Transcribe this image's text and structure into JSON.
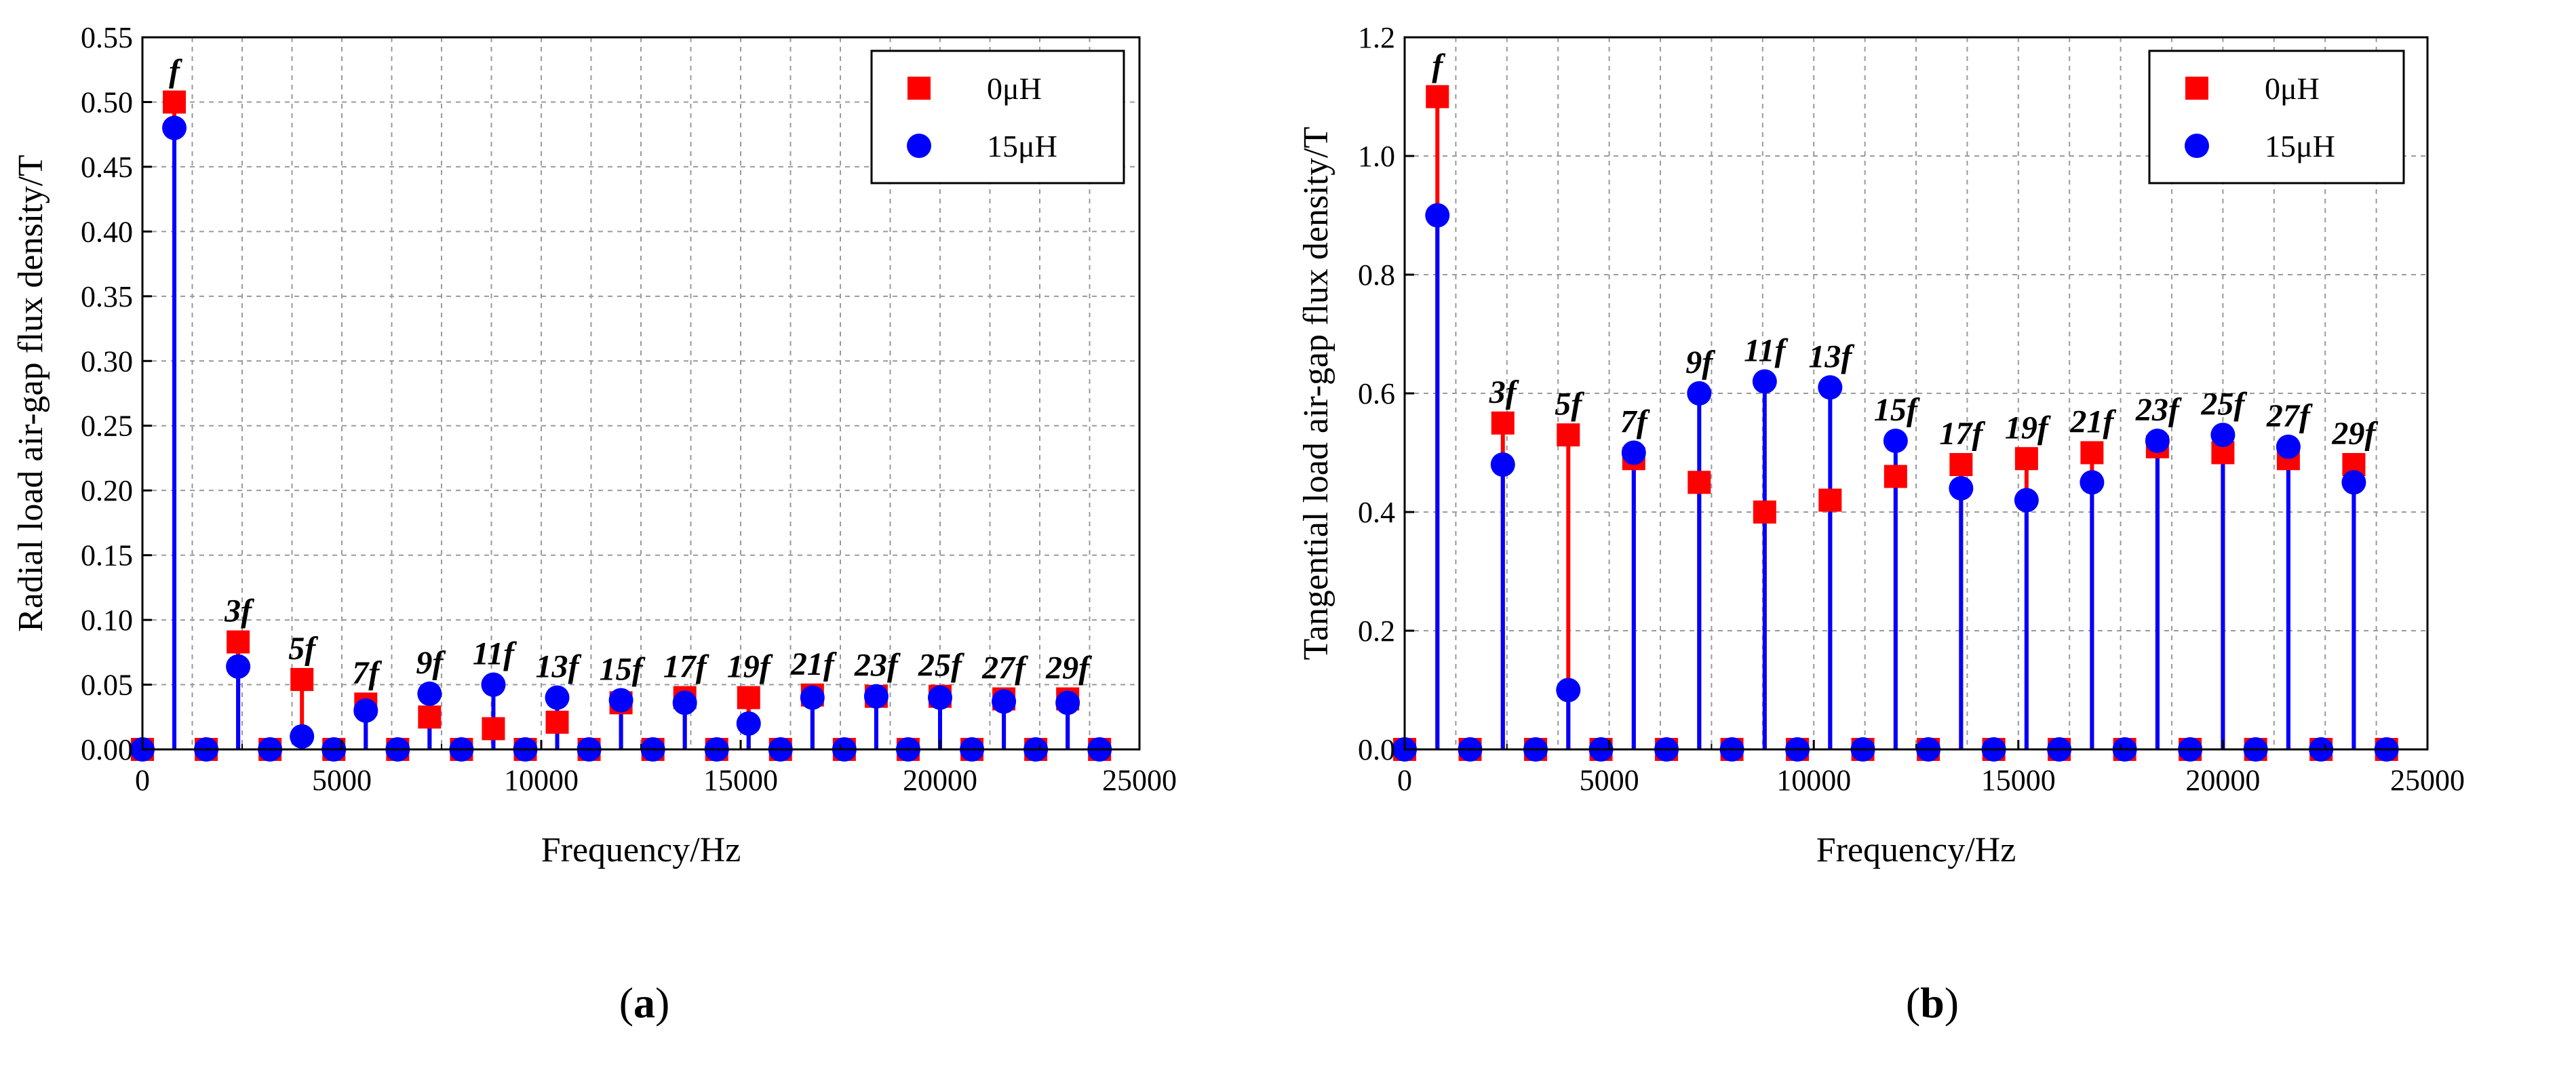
{
  "chart_data": [
    {
      "type": "scatter",
      "caption_prefix": "(",
      "caption_letter": "a",
      "caption_suffix": ")",
      "xlabel": "Frequency/Hz",
      "ylabel": "Radial load air-gap flux density/T",
      "xlim": [
        0,
        25000
      ],
      "ylim": [
        0,
        0.55
      ],
      "xticks": [
        "0",
        "5000",
        "10000",
        "15000",
        "20000",
        "25000"
      ],
      "xtick_values": [
        0,
        5000,
        10000,
        15000,
        20000,
        25000
      ],
      "yticks": [
        "0.00",
        "0.05",
        "0.10",
        "0.15",
        "0.20",
        "0.25",
        "0.30",
        "0.35",
        "0.40",
        "0.45",
        "0.50",
        "0.55"
      ],
      "ytick_values": [
        0,
        0.05,
        0.1,
        0.15,
        0.2,
        0.25,
        0.3,
        0.35,
        0.4,
        0.45,
        0.5,
        0.55
      ],
      "grid": true,
      "legend_position": "top-right",
      "x": [
        0,
        800,
        1600,
        2400,
        3200,
        4000,
        4800,
        5600,
        6400,
        7200,
        8000,
        8800,
        9600,
        10400,
        11200,
        12000,
        12800,
        13600,
        14400,
        15200,
        16000,
        16800,
        17600,
        18400,
        19200,
        20000,
        20800,
        21600,
        22400,
        23200,
        24000
      ],
      "series": [
        {
          "name": "0μH",
          "color": "#ff0000",
          "marker": "square",
          "values": [
            0,
            0.5,
            0,
            0.083,
            0,
            0.054,
            0,
            0.035,
            0,
            0.025,
            0,
            0.016,
            0,
            0.021,
            0,
            0.036,
            0,
            0.04,
            0,
            0.04,
            0,
            0.042,
            0,
            0.041,
            0,
            0.041,
            0,
            0.039,
            0,
            0.039,
            0
          ]
        },
        {
          "name": "15μH",
          "color": "#0000ff",
          "marker": "circle",
          "values": [
            0,
            0.48,
            0,
            0.064,
            0,
            0.01,
            0,
            0.03,
            0,
            0.043,
            0,
            0.05,
            0,
            0.04,
            0,
            0.038,
            0,
            0.036,
            0,
            0.02,
            0,
            0.04,
            0,
            0.041,
            0,
            0.04,
            0,
            0.037,
            0,
            0.036,
            0
          ]
        }
      ],
      "annotations": [
        {
          "text": "f",
          "x": 800,
          "y": 0.5
        },
        {
          "text": "3f",
          "x": 2400,
          "y": 0.083
        },
        {
          "text": "5f",
          "x": 4000,
          "y": 0.054
        },
        {
          "text": "7f",
          "x": 5600,
          "y": 0.035
        },
        {
          "text": "9f",
          "x": 7200,
          "y": 0.043
        },
        {
          "text": "11f",
          "x": 8800,
          "y": 0.05
        },
        {
          "text": "13f",
          "x": 10400,
          "y": 0.04
        },
        {
          "text": "15f",
          "x": 12000,
          "y": 0.038
        },
        {
          "text": "17f",
          "x": 13600,
          "y": 0.04
        },
        {
          "text": "19f",
          "x": 15200,
          "y": 0.04
        },
        {
          "text": "21f",
          "x": 16800,
          "y": 0.042
        },
        {
          "text": "23f",
          "x": 18400,
          "y": 0.041
        },
        {
          "text": "25f",
          "x": 20000,
          "y": 0.041
        },
        {
          "text": "27f",
          "x": 21600,
          "y": 0.039
        },
        {
          "text": "29f",
          "x": 23200,
          "y": 0.039
        }
      ]
    },
    {
      "type": "scatter",
      "caption_prefix": "(",
      "caption_letter": "b",
      "caption_suffix": ")",
      "xlabel": "Frequency/Hz",
      "ylabel": "Tangential load air-gap flux density/T",
      "xlim": [
        0,
        25000
      ],
      "ylim": [
        0,
        1.2
      ],
      "xticks": [
        "0",
        "5000",
        "10000",
        "15000",
        "20000",
        "25000"
      ],
      "xtick_values": [
        0,
        5000,
        10000,
        15000,
        20000,
        25000
      ],
      "yticks": [
        "0.0",
        "0.2",
        "0.4",
        "0.6",
        "0.8",
        "1.0",
        "1.2"
      ],
      "ytick_values": [
        0,
        0.2,
        0.4,
        0.6,
        0.8,
        1.0,
        1.2
      ],
      "grid": true,
      "legend_position": "top-right",
      "x": [
        0,
        800,
        1600,
        2400,
        3200,
        4000,
        4800,
        5600,
        6400,
        7200,
        8000,
        8800,
        9600,
        10400,
        11200,
        12000,
        12800,
        13600,
        14400,
        15200,
        16000,
        16800,
        17600,
        18400,
        19200,
        20000,
        20800,
        21600,
        22400,
        23200,
        24000
      ],
      "series": [
        {
          "name": "0μH",
          "color": "#ff0000",
          "marker": "square",
          "values": [
            0,
            1.1,
            0,
            0.55,
            0,
            0.53,
            0,
            0.49,
            0,
            0.45,
            0,
            0.4,
            0,
            0.42,
            0,
            0.46,
            0,
            0.48,
            0,
            0.49,
            0,
            0.5,
            0,
            0.51,
            0,
            0.5,
            0,
            0.49,
            0,
            0.48,
            0
          ]
        },
        {
          "name": "15μH",
          "color": "#0000ff",
          "marker": "circle",
          "values": [
            0,
            0.9,
            0,
            0.48,
            0,
            0.1,
            0,
            0.5,
            0,
            0.6,
            0,
            0.62,
            0,
            0.61,
            0,
            0.52,
            0,
            0.44,
            0,
            0.42,
            0,
            0.45,
            0,
            0.52,
            0,
            0.53,
            0,
            0.51,
            0,
            0.45,
            0
          ]
        }
      ],
      "annotations": [
        {
          "text": "f",
          "x": 800,
          "y": 1.1
        },
        {
          "text": "3f",
          "x": 2400,
          "y": 0.55
        },
        {
          "text": "5f",
          "x": 4000,
          "y": 0.53
        },
        {
          "text": "7f",
          "x": 5600,
          "y": 0.5
        },
        {
          "text": "9f",
          "x": 7200,
          "y": 0.6
        },
        {
          "text": "11f",
          "x": 8800,
          "y": 0.62
        },
        {
          "text": "13f",
          "x": 10400,
          "y": 0.61
        },
        {
          "text": "15f",
          "x": 12000,
          "y": 0.52
        },
        {
          "text": "17f",
          "x": 13600,
          "y": 0.48
        },
        {
          "text": "19f",
          "x": 15200,
          "y": 0.49
        },
        {
          "text": "21f",
          "x": 16800,
          "y": 0.5
        },
        {
          "text": "23f",
          "x": 18400,
          "y": 0.52
        },
        {
          "text": "25f",
          "x": 20000,
          "y": 0.53
        },
        {
          "text": "27f",
          "x": 21600,
          "y": 0.51
        },
        {
          "text": "29f",
          "x": 23200,
          "y": 0.48
        }
      ]
    }
  ]
}
